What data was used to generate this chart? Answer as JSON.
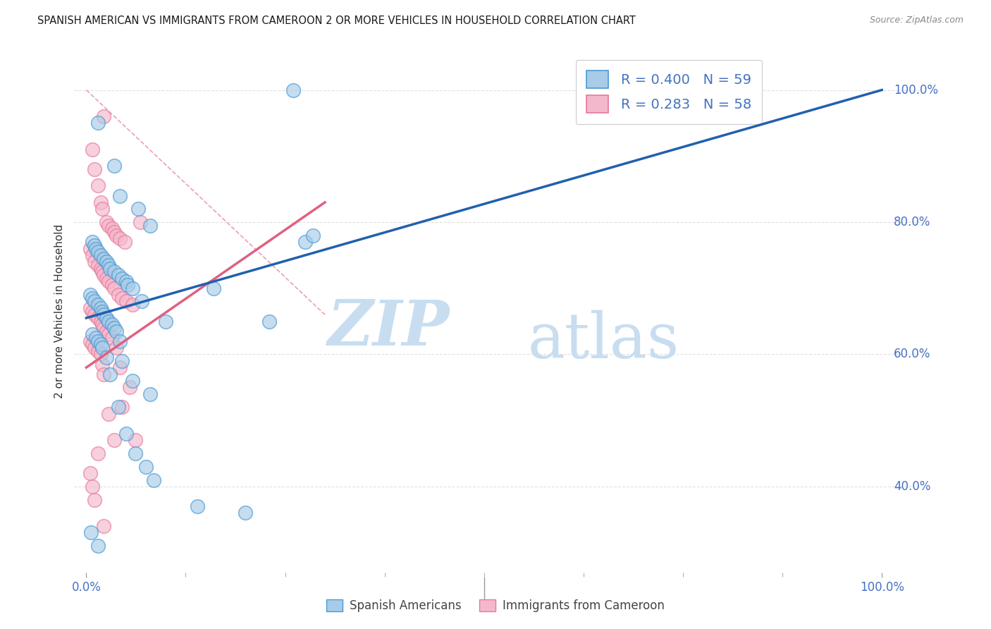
{
  "title": "SPANISH AMERICAN VS IMMIGRANTS FROM CAMEROON 2 OR MORE VEHICLES IN HOUSEHOLD CORRELATION CHART",
  "source": "Source: ZipAtlas.com",
  "ylabel": "2 or more Vehicles in Household",
  "color_blue_face": "#a8cce8",
  "color_blue_edge": "#4899d4",
  "color_pink_face": "#f4b8cc",
  "color_pink_edge": "#e87898",
  "line_blue": "#2060b0",
  "line_pink": "#e06080",
  "line_dashed_color": "#e8a0b8",
  "axis_label_color": "#4472c4",
  "grid_color": "#e0e0e0",
  "text_color": "#333333",
  "watermark_zip_color": "#c8ddf0",
  "watermark_atlas_color": "#c8ddf0",
  "background": "#ffffff",
  "R_blue": 0.4,
  "N_blue": 59,
  "R_pink": 0.283,
  "N_pink": 58,
  "blue_x": [
    1.5,
    3.5,
    4.2,
    6.5,
    8.0,
    0.8,
    1.0,
    1.2,
    1.5,
    1.8,
    2.2,
    2.5,
    2.8,
    3.0,
    3.5,
    4.0,
    4.5,
    5.0,
    5.2,
    5.8,
    7.0,
    10.0,
    16.0,
    23.0,
    27.5,
    0.5,
    0.8,
    1.0,
    1.5,
    1.8,
    2.0,
    2.2,
    2.5,
    2.8,
    3.2,
    3.5,
    3.8,
    4.2,
    4.5,
    5.8,
    8.0,
    0.8,
    1.2,
    1.5,
    1.8,
    2.0,
    2.5,
    3.0,
    4.0,
    5.0,
    6.2,
    7.5,
    8.5,
    14.0,
    20.0,
    26.0,
    28.5,
    0.6,
    1.5
  ],
  "blue_y": [
    95.0,
    88.5,
    84.0,
    82.0,
    79.5,
    77.0,
    76.5,
    76.0,
    75.5,
    75.0,
    74.5,
    74.0,
    73.5,
    73.0,
    72.5,
    72.0,
    71.5,
    71.0,
    70.5,
    70.0,
    68.0,
    65.0,
    70.0,
    65.0,
    77.0,
    69.0,
    68.5,
    68.0,
    67.5,
    67.0,
    66.5,
    66.0,
    65.5,
    65.0,
    64.5,
    64.0,
    63.5,
    62.0,
    59.0,
    56.0,
    54.0,
    63.0,
    62.5,
    62.0,
    61.5,
    61.0,
    59.5,
    57.0,
    52.0,
    48.0,
    45.0,
    43.0,
    41.0,
    37.0,
    36.0,
    100.0,
    78.0,
    33.0,
    31.0
  ],
  "pink_x": [
    2.2,
    0.8,
    1.0,
    1.5,
    1.8,
    2.0,
    2.5,
    2.8,
    3.2,
    3.5,
    3.8,
    4.2,
    4.8,
    0.5,
    0.8,
    1.0,
    1.5,
    1.8,
    2.0,
    2.2,
    2.5,
    2.8,
    3.2,
    3.5,
    4.0,
    4.5,
    5.0,
    5.8,
    6.8,
    0.5,
    0.8,
    1.0,
    1.5,
    1.8,
    2.0,
    2.2,
    2.5,
    2.8,
    3.2,
    3.8,
    4.2,
    5.5,
    0.5,
    0.8,
    1.0,
    1.5,
    1.8,
    2.0,
    2.2,
    2.8,
    3.5,
    4.5,
    6.2,
    0.5,
    0.8,
    1.0,
    1.5,
    2.2
  ],
  "pink_y": [
    96.0,
    91.0,
    88.0,
    85.5,
    83.0,
    82.0,
    80.0,
    79.5,
    79.0,
    78.5,
    78.0,
    77.5,
    77.0,
    76.0,
    75.0,
    74.0,
    73.5,
    73.0,
    72.5,
    72.0,
    71.5,
    71.0,
    70.5,
    70.0,
    69.0,
    68.5,
    68.0,
    67.5,
    80.0,
    67.0,
    66.5,
    66.0,
    65.5,
    65.0,
    64.5,
    64.0,
    63.5,
    63.0,
    62.5,
    61.0,
    58.0,
    55.0,
    62.0,
    61.5,
    61.0,
    60.5,
    60.0,
    58.5,
    57.0,
    51.0,
    47.0,
    52.0,
    47.0,
    42.0,
    40.0,
    38.0,
    45.0,
    34.0
  ],
  "xlim": [
    -1.5,
    105
  ],
  "ylim": [
    27,
    106
  ],
  "yticks": [
    40,
    60,
    80,
    100
  ],
  "ytick_labels": [
    "40.0%",
    "60.0%",
    "80.0%",
    "100.0%"
  ],
  "xticks": [
    0,
    100
  ],
  "xtick_labels": [
    "0.0%",
    "100.0%"
  ],
  "xtick_minor": [
    12.5,
    25,
    37.5,
    50,
    62.5,
    75,
    87.5
  ],
  "blue_reg_x0": 0,
  "blue_reg_y0": 65.5,
  "blue_reg_x1": 100,
  "blue_reg_y1": 100.0,
  "pink_reg_x0": 0,
  "pink_reg_y0": 58.0,
  "pink_reg_x1": 30,
  "pink_reg_y1": 83.0,
  "diag_x0": 0,
  "diag_y0": 100.0,
  "diag_x1": 30,
  "diag_y1": 66.0,
  "legend_label_blue": "Spanish Americans",
  "legend_label_pink": "Immigrants from Cameroon"
}
